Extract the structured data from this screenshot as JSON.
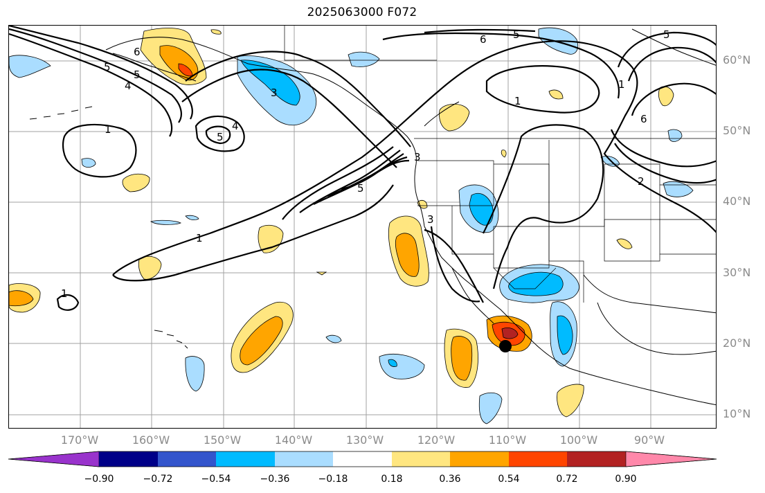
{
  "title": "2025063000 F072",
  "lat_labels": [
    "60°N",
    "50°N",
    "40°N",
    "30°N",
    "20°N",
    "10°N"
  ],
  "lon_labels": [
    "170°W",
    "160°W",
    "150°W",
    "140°W",
    "130°W",
    "120°W",
    "110°W",
    "100°W",
    "90°W"
  ],
  "contour_labels": [
    "6",
    "5",
    "5",
    "4",
    "3",
    "1",
    "5",
    "4",
    "3",
    "1",
    "5",
    "3",
    "1",
    "6",
    "5",
    "1",
    "6",
    "5",
    "2",
    "1"
  ],
  "colorbar": {
    "tick_labels": [
      "−0.90",
      "−0.72",
      "−0.54",
      "−0.36",
      "−0.18",
      "0.18",
      "0.36",
      "0.54",
      "0.72",
      "0.90"
    ],
    "colors": [
      "#9933cc",
      "#000088",
      "#3355cc",
      "#00bbff",
      "#aaddff",
      "#ffffff",
      "#ffe680",
      "#ffa500",
      "#ff4500",
      "#b22222",
      "#ff88aa"
    ]
  },
  "marker": {
    "label": "storm-center",
    "color": "#000000"
  }
}
